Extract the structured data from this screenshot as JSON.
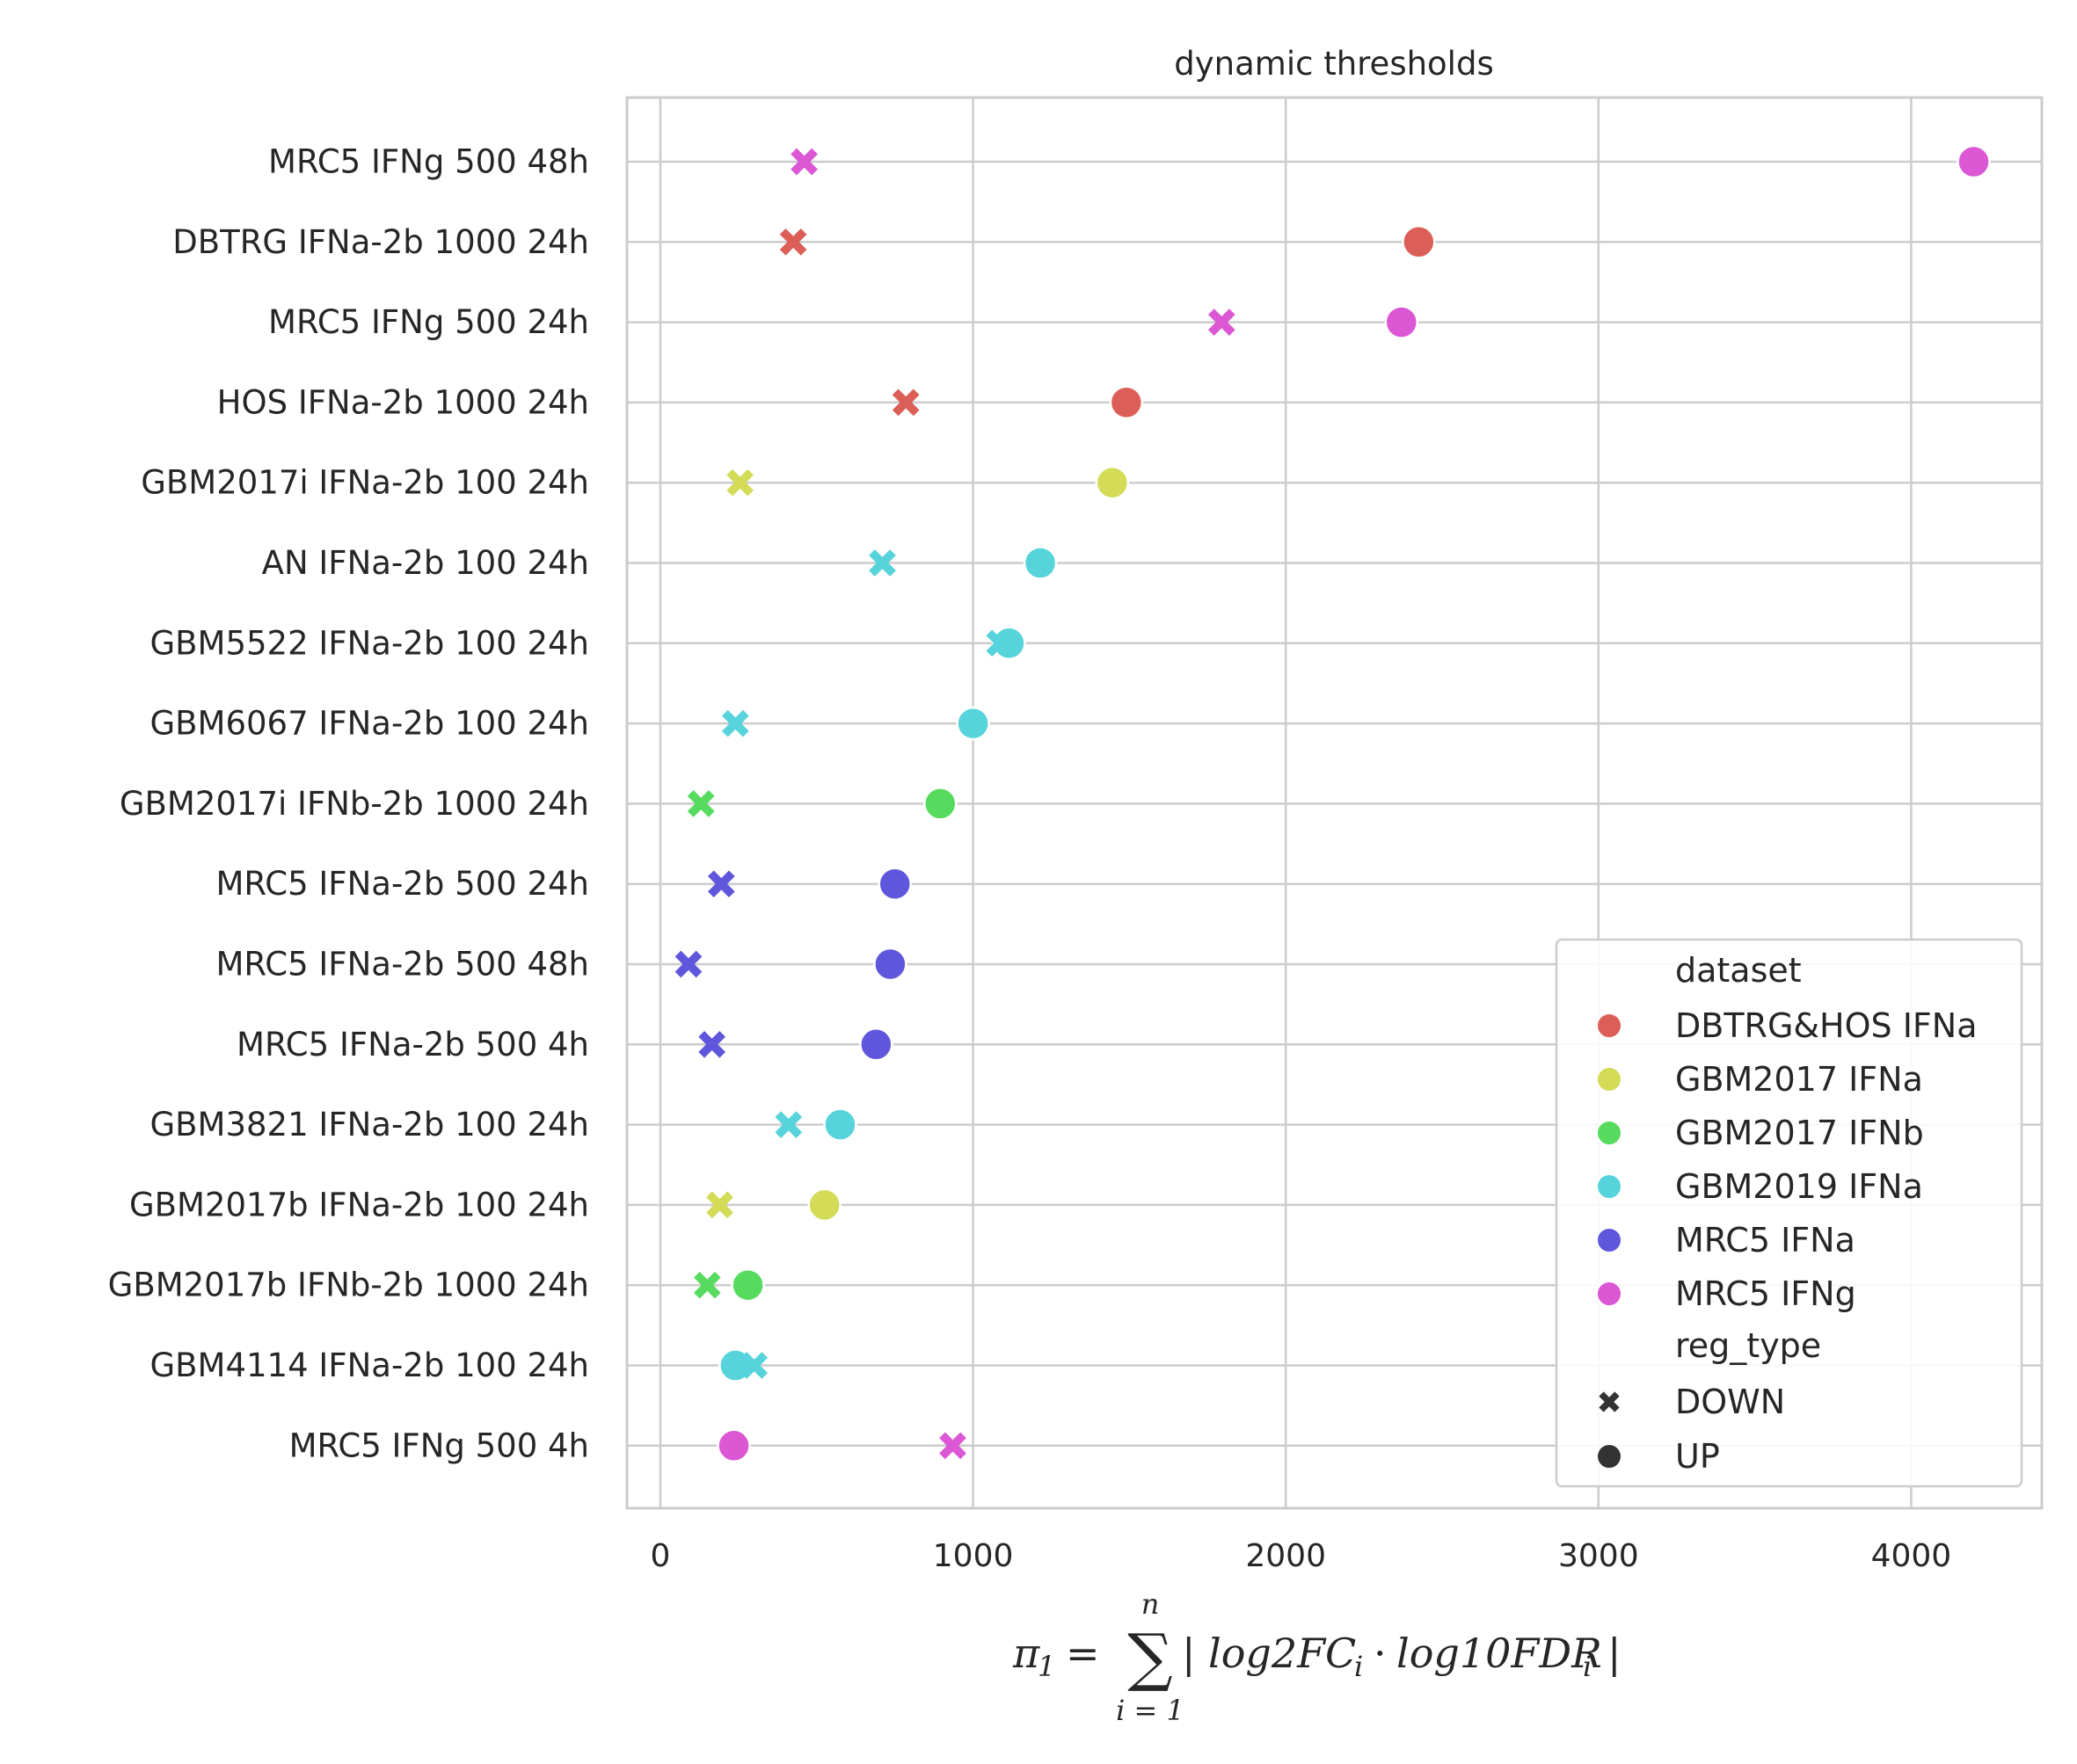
{
  "chart_data": {
    "type": "scatter",
    "title": "dynamic thresholds",
    "xlabel": "π₁ = Σ | log2FCᵢ · log10FDRᵢ |",
    "xlabel_parts": {
      "lhs": "π",
      "lhs_sub": "1",
      "eq": "=",
      "sum": "∑",
      "sum_top": "n",
      "sum_bottom": "i = 1",
      "bar_open": "|",
      "t1": "log2FC",
      "t1_sub": "i",
      "dot": "·",
      "t2": "log10FDR",
      "t2_sub": "i",
      "bar_close": "|"
    },
    "ylabel": "",
    "xlim": [
      -100,
      4420
    ],
    "xticks": [
      0,
      1000,
      2000,
      3000,
      4000
    ],
    "grid": true,
    "legend_position": "lower-right",
    "categories": [
      "MRC5 IFNg 500 48h",
      "DBTRG IFNa-2b 1000 24h",
      "MRC5 IFNg 500 24h",
      "HOS IFNa-2b 1000 24h",
      "GBM2017i IFNa-2b 100 24h",
      "AN IFNa-2b 100 24h",
      "GBM5522 IFNa-2b 100 24h",
      "GBM6067 IFNa-2b 100 24h",
      "GBM2017i IFNb-2b 1000 24h",
      "MRC5 IFNa-2b 500 24h",
      "MRC5 IFNa-2b 500 48h",
      "MRC5 IFNa-2b 500 4h",
      "GBM3821 IFNa-2b 100 24h",
      "GBM2017b IFNa-2b 100 24h",
      "GBM2017b IFNb-2b 1000 24h",
      "GBM4114 IFNa-2b 100 24h",
      "MRC5 IFNg 500 4h"
    ],
    "legend": {
      "hue_title": "dataset",
      "hue_entries": [
        {
          "name": "DBTRG&HOS IFNa",
          "color": "#db5f57"
        },
        {
          "name": "GBM2017 IFNa",
          "color": "#d3db57"
        },
        {
          "name": "GBM2017 IFNb",
          "color": "#57db5f"
        },
        {
          "name": "GBM2019 IFNa",
          "color": "#57d3db"
        },
        {
          "name": "MRC5 IFNa",
          "color": "#5f57db"
        },
        {
          "name": "MRC5 IFNg",
          "color": "#db57d3"
        }
      ],
      "style_title": "reg_type",
      "style_entries": [
        {
          "name": "DOWN",
          "marker": "x"
        },
        {
          "name": "UP",
          "marker": "o"
        }
      ]
    },
    "points": [
      {
        "category": "MRC5 IFNg 500 48h",
        "dataset": "MRC5 IFNg",
        "reg_type": "UP",
        "x": 4200
      },
      {
        "category": "MRC5 IFNg 500 48h",
        "dataset": "MRC5 IFNg",
        "reg_type": "DOWN",
        "x": 460
      },
      {
        "category": "DBTRG IFNa-2b 1000 24h",
        "dataset": "DBTRG&HOS IFNa",
        "reg_type": "UP",
        "x": 2425
      },
      {
        "category": "DBTRG IFNa-2b 1000 24h",
        "dataset": "DBTRG&HOS IFNa",
        "reg_type": "DOWN",
        "x": 425
      },
      {
        "category": "MRC5 IFNg 500 24h",
        "dataset": "MRC5 IFNg",
        "reg_type": "UP",
        "x": 2370
      },
      {
        "category": "MRC5 IFNg 500 24h",
        "dataset": "MRC5 IFNg",
        "reg_type": "DOWN",
        "x": 1795
      },
      {
        "category": "HOS IFNa-2b 1000 24h",
        "dataset": "DBTRG&HOS IFNa",
        "reg_type": "UP",
        "x": 1490
      },
      {
        "category": "HOS IFNa-2b 1000 24h",
        "dataset": "DBTRG&HOS IFNa",
        "reg_type": "DOWN",
        "x": 785
      },
      {
        "category": "GBM2017i IFNa-2b 100 24h",
        "dataset": "GBM2017 IFNa",
        "reg_type": "UP",
        "x": 1445
      },
      {
        "category": "GBM2017i IFNa-2b 100 24h",
        "dataset": "GBM2017 IFNa",
        "reg_type": "DOWN",
        "x": 255
      },
      {
        "category": "AN IFNa-2b 100 24h",
        "dataset": "GBM2019 IFNa",
        "reg_type": "UP",
        "x": 1215
      },
      {
        "category": "AN IFNa-2b 100 24h",
        "dataset": "GBM2019 IFNa",
        "reg_type": "DOWN",
        "x": 710
      },
      {
        "category": "GBM5522 IFNa-2b 100 24h",
        "dataset": "GBM2019 IFNa",
        "reg_type": "UP",
        "x": 1115
      },
      {
        "category": "GBM5522 IFNa-2b 100 24h",
        "dataset": "GBM2019 IFNa",
        "reg_type": "DOWN",
        "x": 1085
      },
      {
        "category": "GBM6067 IFNa-2b 100 24h",
        "dataset": "GBM2019 IFNa",
        "reg_type": "UP",
        "x": 1000
      },
      {
        "category": "GBM6067 IFNa-2b 100 24h",
        "dataset": "GBM2019 IFNa",
        "reg_type": "DOWN",
        "x": 240
      },
      {
        "category": "GBM2017i IFNb-2b 1000 24h",
        "dataset": "GBM2017 IFNb",
        "reg_type": "UP",
        "x": 895
      },
      {
        "category": "GBM2017i IFNb-2b 1000 24h",
        "dataset": "GBM2017 IFNb",
        "reg_type": "DOWN",
        "x": 130
      },
      {
        "category": "MRC5 IFNa-2b 500 24h",
        "dataset": "MRC5 IFNa",
        "reg_type": "UP",
        "x": 750
      },
      {
        "category": "MRC5 IFNa-2b 500 24h",
        "dataset": "MRC5 IFNa",
        "reg_type": "DOWN",
        "x": 195
      },
      {
        "category": "MRC5 IFNa-2b 500 48h",
        "dataset": "MRC5 IFNa",
        "reg_type": "UP",
        "x": 735
      },
      {
        "category": "MRC5 IFNa-2b 500 48h",
        "dataset": "MRC5 IFNa",
        "reg_type": "DOWN",
        "x": 90
      },
      {
        "category": "MRC5 IFNa-2b 500 4h",
        "dataset": "MRC5 IFNa",
        "reg_type": "UP",
        "x": 690
      },
      {
        "category": "MRC5 IFNa-2b 500 4h",
        "dataset": "MRC5 IFNa",
        "reg_type": "DOWN",
        "x": 165
      },
      {
        "category": "GBM3821 IFNa-2b 100 24h",
        "dataset": "GBM2019 IFNa",
        "reg_type": "UP",
        "x": 575
      },
      {
        "category": "GBM3821 IFNa-2b 100 24h",
        "dataset": "GBM2019 IFNa",
        "reg_type": "DOWN",
        "x": 410
      },
      {
        "category": "GBM2017b IFNa-2b 100 24h",
        "dataset": "GBM2017 IFNa",
        "reg_type": "UP",
        "x": 525
      },
      {
        "category": "GBM2017b IFNa-2b 100 24h",
        "dataset": "GBM2017 IFNa",
        "reg_type": "DOWN",
        "x": 190
      },
      {
        "category": "GBM2017b IFNb-2b 1000 24h",
        "dataset": "GBM2017 IFNb",
        "reg_type": "UP",
        "x": 280
      },
      {
        "category": "GBM2017b IFNb-2b 1000 24h",
        "dataset": "GBM2017 IFNb",
        "reg_type": "DOWN",
        "x": 150
      },
      {
        "category": "GBM4114 IFNa-2b 100 24h",
        "dataset": "GBM2019 IFNa",
        "reg_type": "UP",
        "x": 240
      },
      {
        "category": "GBM4114 IFNa-2b 100 24h",
        "dataset": "GBM2019 IFNa",
        "reg_type": "DOWN",
        "x": 300
      },
      {
        "category": "MRC5 IFNg 500 4h",
        "dataset": "MRC5 IFNg",
        "reg_type": "UP",
        "x": 235
      },
      {
        "category": "MRC5 IFNg 500 4h",
        "dataset": "MRC5 IFNg",
        "reg_type": "DOWN",
        "x": 935
      }
    ]
  }
}
